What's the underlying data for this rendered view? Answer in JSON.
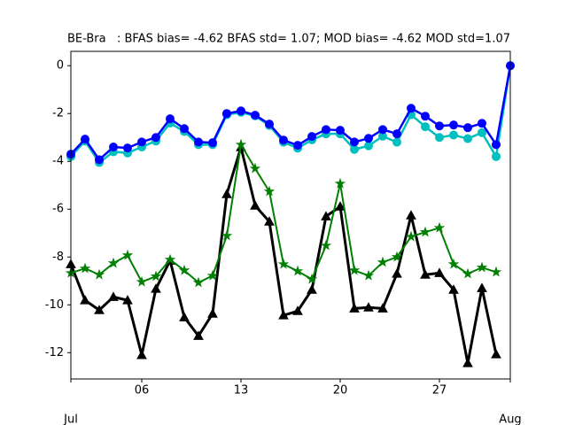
{
  "chart_data": {
    "type": "line",
    "title": "BE-Bra   : BFAS bias= -4.62 BFAS std= 1.07; MOD bias= -4.62 MOD std=1.07",
    "x": [
      1,
      2,
      3,
      4,
      5,
      6,
      7,
      8,
      9,
      10,
      11,
      12,
      13,
      14,
      15,
      16,
      17,
      18,
      19,
      20,
      21,
      22,
      23,
      24,
      25,
      26,
      27,
      28,
      29,
      30,
      31,
      32
    ],
    "xlim": [
      1,
      32
    ],
    "xticks": [
      {
        "value": 6,
        "label": "06"
      },
      13,
      20,
      27
    ],
    "month_ticks": [
      {
        "value": 1,
        "label": "Jul"
      },
      {
        "value": 32,
        "label": "Aug"
      }
    ],
    "ylim": [
      -13.1,
      0.6
    ],
    "yticks": [
      0,
      -2,
      -4,
      -6,
      -8,
      -10,
      -12
    ],
    "grid": false,
    "series": [
      {
        "color": "#000000",
        "marker": "triangle",
        "width": 3,
        "values": [
          -8.3,
          -9.81,
          -10.22,
          -9.67,
          -9.81,
          -12.1,
          -9.33,
          -8.15,
          -10.52,
          -11.3,
          -10.37,
          -5.37,
          -3.41,
          -5.85,
          -6.52,
          -10.44,
          -10.26,
          -9.37,
          -6.3,
          -5.89,
          -10.15,
          -10.11,
          -10.15,
          -8.7,
          -6.26,
          -8.74,
          -8.67,
          -9.37,
          -12.44,
          -9.3,
          -12.07,
          null
        ]
      },
      {
        "color": "#008000",
        "marker": "star",
        "width": 2,
        "values": [
          -8.67,
          -8.48,
          -8.74,
          -8.26,
          -7.93,
          -9.04,
          -8.81,
          -8.11,
          -8.56,
          -9.07,
          -8.78,
          -7.11,
          -3.3,
          -4.3,
          -5.26,
          -8.3,
          -8.59,
          -8.93,
          -7.52,
          -4.93,
          -8.56,
          -8.78,
          -8.22,
          -8.0,
          -7.15,
          -6.96,
          -6.78,
          -8.3,
          -8.7,
          -8.44,
          -8.63,
          null
        ]
      },
      {
        "color": "#00bfbf",
        "marker": "circle",
        "width": 2.5,
        "values": [
          -3.8,
          -3.15,
          -4.05,
          -3.6,
          -3.65,
          -3.4,
          -3.15,
          -2.4,
          -2.75,
          -3.3,
          -3.3,
          -2.05,
          -1.95,
          -2.1,
          -2.5,
          -3.2,
          -3.45,
          -3.1,
          -2.85,
          -2.85,
          -3.5,
          -3.35,
          -2.95,
          -3.2,
          -2.05,
          -2.55,
          -3.0,
          -2.9,
          -3.05,
          -2.8,
          -3.8,
          0
        ]
      },
      {
        "color": "#0000ff",
        "marker": "circle",
        "width": 2.5,
        "values": [
          -3.7,
          -3.07,
          -3.93,
          -3.4,
          -3.44,
          -3.19,
          -3.0,
          -2.22,
          -2.63,
          -3.19,
          -3.22,
          -2.0,
          -1.89,
          -2.07,
          -2.44,
          -3.11,
          -3.33,
          -2.96,
          -2.67,
          -2.7,
          -3.19,
          -3.04,
          -2.67,
          -2.85,
          -1.78,
          -2.11,
          -2.52,
          -2.48,
          -2.59,
          -2.41,
          -3.3,
          0
        ]
      }
    ]
  }
}
